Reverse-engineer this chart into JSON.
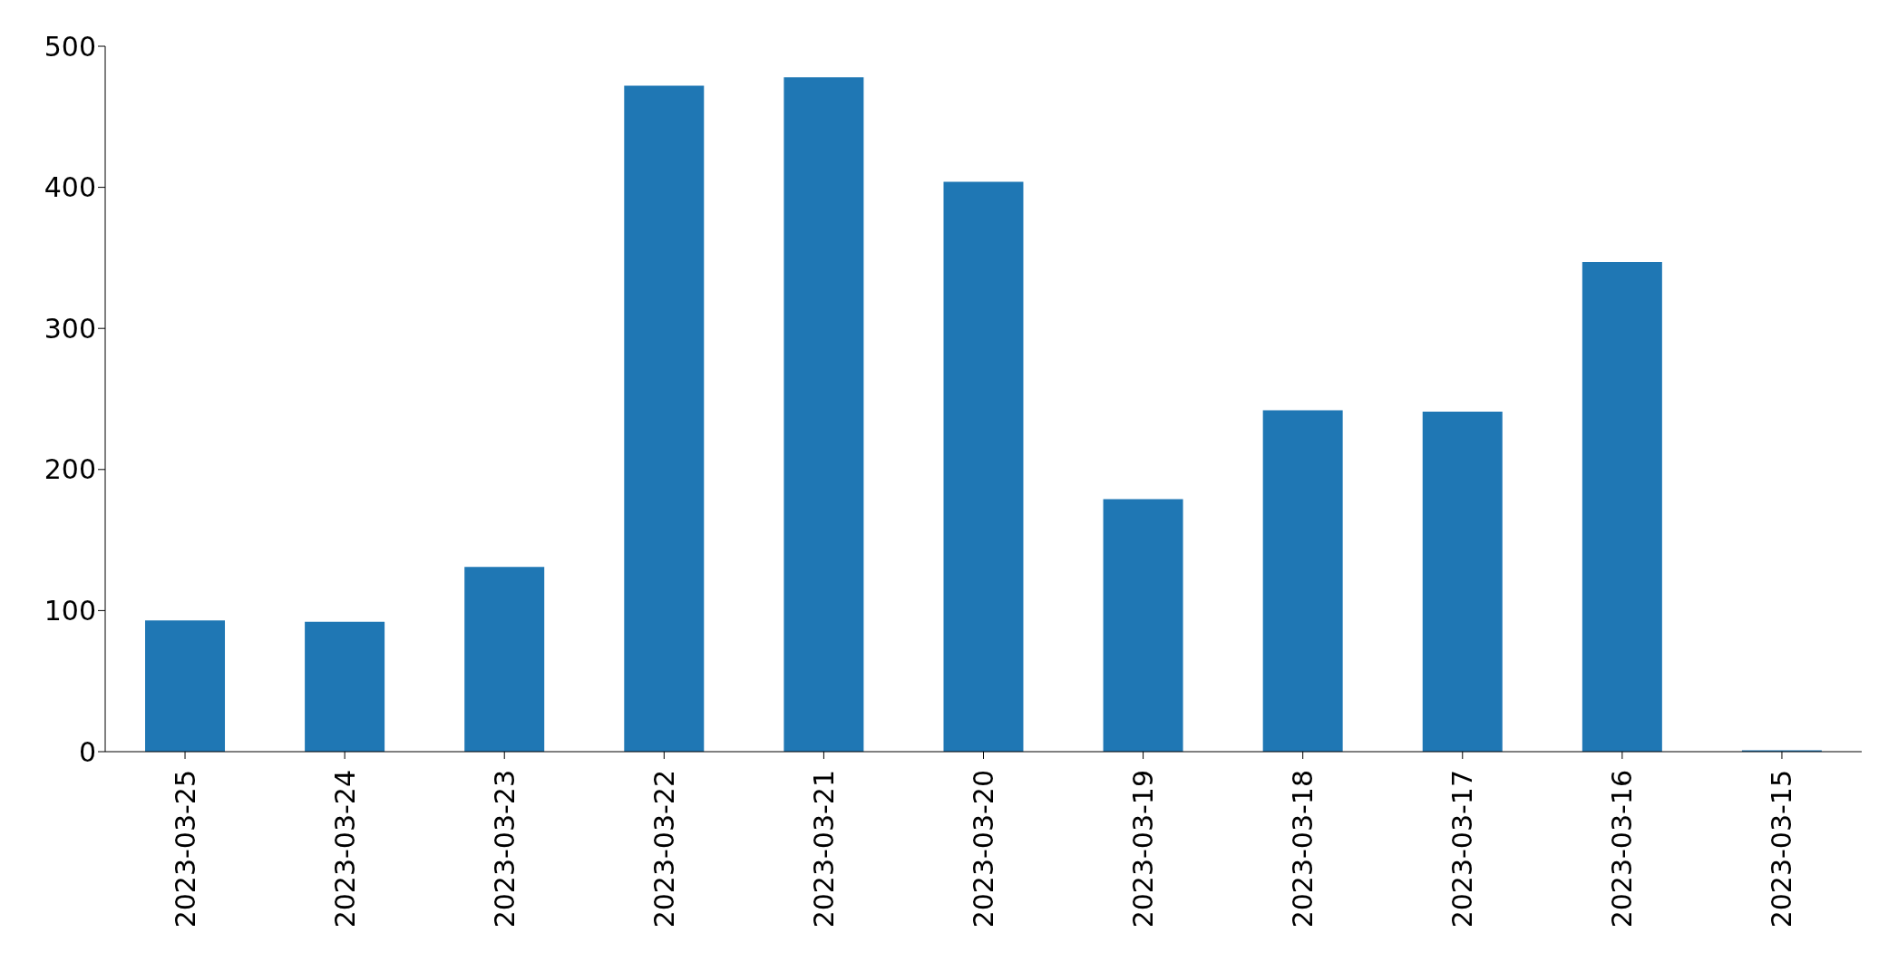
{
  "chart_data": {
    "type": "bar",
    "categories": [
      "2023-03-25",
      "2023-03-24",
      "2023-03-23",
      "2023-03-22",
      "2023-03-21",
      "2023-03-20",
      "2023-03-19",
      "2023-03-18",
      "2023-03-17",
      "2023-03-16",
      "2023-03-15"
    ],
    "values": [
      93,
      92,
      131,
      472,
      478,
      404,
      179,
      242,
      241,
      347,
      1
    ],
    "color": "#1f77b4",
    "ylim": [
      0,
      500
    ],
    "yticks": [
      0,
      100,
      200,
      300,
      400,
      500
    ],
    "grid": false,
    "legend": false
  }
}
